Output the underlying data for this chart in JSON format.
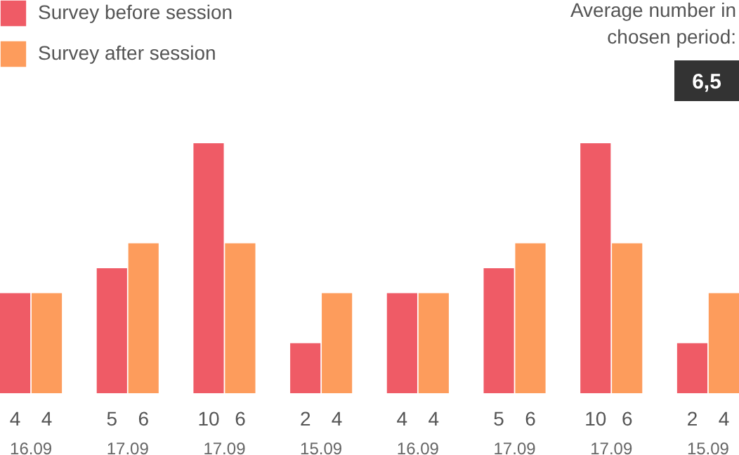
{
  "chart_data": {
    "type": "bar",
    "categories": [
      "16.09",
      "17.09",
      "17.09",
      "15.09",
      "16.09",
      "17.09",
      "17.09",
      "15.09"
    ],
    "series": [
      {
        "name": "Survey before session",
        "color": "#ef5b66",
        "values": [
          4,
          5,
          10,
          2,
          4,
          5,
          10,
          2
        ]
      },
      {
        "name": "Survey after session",
        "color": "#fd9c5c",
        "values": [
          4,
          6,
          6,
          4,
          4,
          6,
          6,
          4
        ]
      }
    ],
    "data_labels": true,
    "legend": "top left",
    "grid": false,
    "annotations": [
      "Average number in chosen period:",
      "6,5"
    ]
  }
}
